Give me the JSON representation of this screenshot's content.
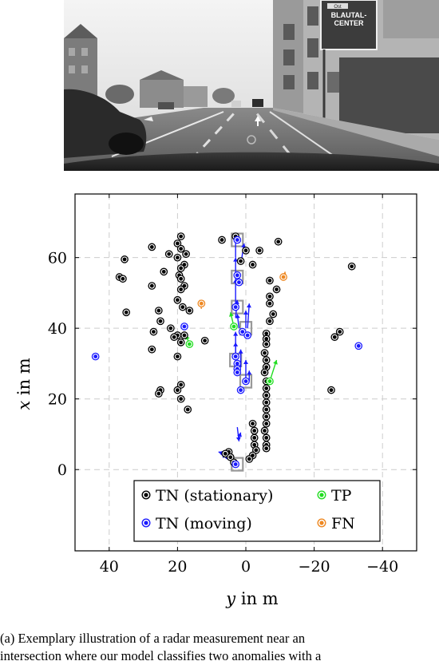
{
  "camera": {
    "sign_line1": "BLAUTAL-",
    "sign_line2": "CENTER",
    "sign_small": "Ost"
  },
  "chart_data": {
    "type": "scatter",
    "xlabel_var": "y",
    "xlabel_unit": " in m",
    "ylabel_var": "x",
    "ylabel_unit": " in m",
    "xlim": [
      50,
      -50
    ],
    "ylim": [
      -23,
      78
    ],
    "x_reversed": true,
    "grid": true,
    "xticks": [
      40,
      20,
      0,
      -20,
      -40
    ],
    "xtick_labels": [
      "40",
      "20",
      "0",
      "−20",
      "−40"
    ],
    "yticks": [
      0,
      20,
      40,
      60
    ],
    "ytick_labels": [
      "0",
      "20",
      "40",
      "60"
    ],
    "legend_position": "bottom-center",
    "colors": {
      "stationary": "#000000",
      "moving": "#1a1aff",
      "tp": "#22dd22",
      "fn": "#ee8822",
      "box": "#999999",
      "grid": "#cccccc"
    },
    "legend": [
      {
        "key": "stationary",
        "label": "TN (stationary)"
      },
      {
        "key": "moving",
        "label": "TN (moving)"
      },
      {
        "key": "tp",
        "label": "TP"
      },
      {
        "key": "fn",
        "label": "FN"
      }
    ],
    "series": [
      {
        "key": "stationary",
        "name": "TN (stationary)",
        "points": [
          [
            19,
            66
          ],
          [
            20,
            64
          ],
          [
            19,
            62.5
          ],
          [
            17.5,
            61
          ],
          [
            20,
            60
          ],
          [
            18,
            58
          ],
          [
            19,
            57
          ],
          [
            19.5,
            55
          ],
          [
            19,
            54
          ],
          [
            18,
            52
          ],
          [
            19,
            51
          ],
          [
            27.5,
            63
          ],
          [
            22.5,
            61
          ],
          [
            35.5,
            59.5
          ],
          [
            24,
            56
          ],
          [
            37,
            54.5
          ],
          [
            36,
            54
          ],
          [
            27.5,
            52
          ],
          [
            35,
            44.5
          ],
          [
            20,
            48
          ],
          [
            18.5,
            46
          ],
          [
            16.5,
            45
          ],
          [
            25.5,
            45
          ],
          [
            25,
            42
          ],
          [
            22,
            40
          ],
          [
            27,
            39
          ],
          [
            20,
            38
          ],
          [
            18,
            38
          ],
          [
            21,
            37.5
          ],
          [
            19,
            36
          ],
          [
            12,
            36.5
          ],
          [
            27.5,
            34
          ],
          [
            20,
            32
          ],
          [
            19,
            24
          ],
          [
            20,
            22.5
          ],
          [
            25,
            22.5
          ],
          [
            25.5,
            21.5
          ],
          [
            19,
            20
          ],
          [
            17,
            17
          ],
          [
            7,
            65
          ],
          [
            3,
            66
          ],
          [
            0,
            62
          ],
          [
            1.5,
            59
          ],
          [
            -2,
            58
          ],
          [
            -4,
            62
          ],
          [
            -9.5,
            64.5
          ],
          [
            -7,
            53.5
          ],
          [
            -9,
            51
          ],
          [
            -7,
            49
          ],
          [
            -7,
            47
          ],
          [
            -8,
            44
          ],
          [
            -7,
            42
          ],
          [
            -6,
            38.5
          ],
          [
            -6,
            37
          ],
          [
            -6,
            35.5
          ],
          [
            -5.5,
            33
          ],
          [
            -6,
            31
          ],
          [
            -6,
            29
          ],
          [
            -5.5,
            27.5
          ],
          [
            -6,
            25
          ],
          [
            -6,
            23
          ],
          [
            -6,
            21
          ],
          [
            -6,
            19
          ],
          [
            -6,
            17
          ],
          [
            -6,
            15
          ],
          [
            -6,
            13
          ],
          [
            -5.5,
            11
          ],
          [
            -6,
            9
          ],
          [
            -6,
            7
          ],
          [
            -6,
            6
          ],
          [
            -2,
            13
          ],
          [
            -2.5,
            11
          ],
          [
            -2.5,
            9
          ],
          [
            -2.5,
            7
          ],
          [
            -3,
            5.5
          ],
          [
            -2,
            4
          ],
          [
            -1,
            3
          ],
          [
            5,
            5
          ],
          [
            6,
            4.5
          ],
          [
            4.5,
            3.5
          ],
          [
            3.5,
            2
          ],
          [
            -26,
            37.5
          ],
          [
            -27.5,
            39
          ],
          [
            -25,
            22.5
          ],
          [
            -31,
            57.5
          ]
        ]
      },
      {
        "key": "moving",
        "name": "TN (moving)",
        "points": [
          [
            44,
            32
          ],
          [
            -33,
            35
          ],
          [
            18,
            40.5
          ],
          [
            2.5,
            65
          ],
          [
            2.5,
            55
          ],
          [
            2,
            53
          ],
          [
            3,
            46
          ],
          [
            1,
            39
          ],
          [
            -0.5,
            38
          ],
          [
            3,
            32
          ],
          [
            2.5,
            30
          ],
          [
            2.5,
            28.5
          ],
          [
            2.5,
            27.5
          ],
          [
            0,
            25
          ],
          [
            1.5,
            22.5
          ],
          [
            3,
            1.5
          ]
        ],
        "arrows": [
          [
            3,
            60,
            3,
            67
          ],
          [
            3,
            54,
            3,
            60
          ],
          [
            1.5,
            58,
            0.5,
            64
          ],
          [
            3,
            47,
            3,
            54
          ],
          [
            3,
            43,
            2.5,
            48
          ],
          [
            2,
            40,
            2.5,
            44
          ],
          [
            -0.5,
            40,
            -1,
            47
          ],
          [
            0,
            40,
            0,
            45
          ],
          [
            3,
            33,
            3,
            39
          ],
          [
            3,
            28,
            3,
            36
          ],
          [
            1.5,
            29,
            1.5,
            34
          ],
          [
            0,
            26,
            0,
            31
          ],
          [
            -1,
            25,
            -1,
            28
          ],
          [
            2.5,
            12,
            2,
            8
          ],
          [
            2,
            9,
            1.5,
            10.5
          ],
          [
            5,
            4,
            8,
            5
          ],
          [
            5.5,
            3,
            7,
            4.5
          ],
          [
            3,
            1.5,
            4.5,
            3.5
          ]
        ]
      },
      {
        "key": "tp",
        "name": "TP",
        "points": [
          [
            16.5,
            35.5
          ],
          [
            3.5,
            40.5
          ],
          [
            -7,
            25
          ]
        ],
        "arrows": [
          [
            16.5,
            35.5,
            17.5,
            38
          ],
          [
            3.5,
            40.5,
            4.5,
            44.5
          ],
          [
            -7,
            25,
            -9,
            31
          ]
        ]
      },
      {
        "key": "fn",
        "name": "FN",
        "points": [
          [
            13,
            47
          ],
          [
            -11,
            54.5
          ]
        ],
        "arrows": [
          [
            13,
            45.5,
            13.5,
            48
          ],
          [
            -11,
            53.5,
            -11.5,
            56
          ]
        ]
      }
    ],
    "boxes": [
      [
        2.5,
        65
      ],
      [
        2.5,
        54.5
      ],
      [
        2.5,
        46
      ],
      [
        0,
        40
      ],
      [
        3,
        31
      ],
      [
        0,
        25
      ],
      [
        2.5,
        1.5
      ]
    ]
  },
  "caption": {
    "line1": "(a) Exemplary illustration of a radar measurement near an",
    "line2": "intersection where our model classifies two anomalies with a"
  }
}
